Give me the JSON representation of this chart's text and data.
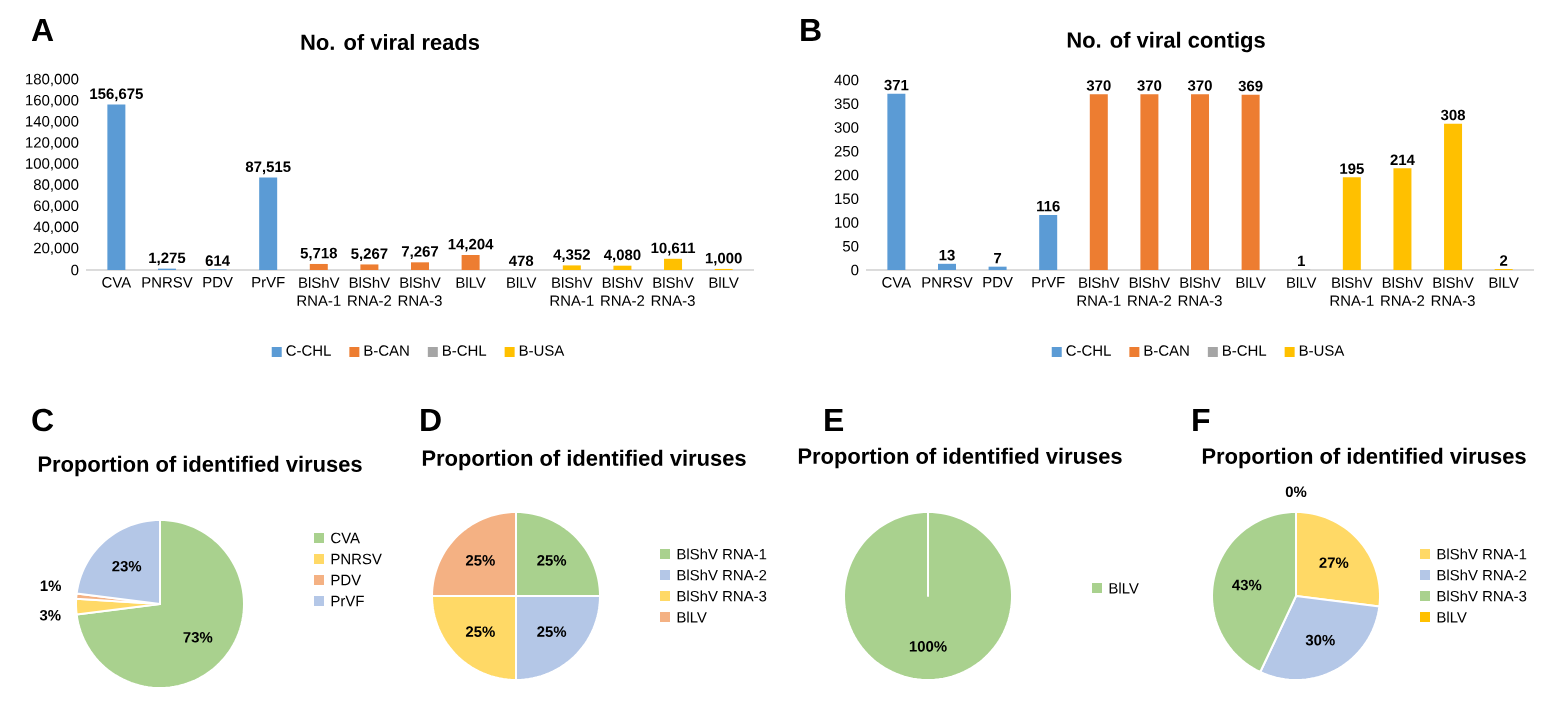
{
  "chart_data": [
    {
      "type": "bar",
      "title": "No. of viral reads",
      "annotations": [
        "A"
      ],
      "legend": "bottom",
      "categories": [
        "CVA",
        "PNRSV",
        "PDV",
        "PrVF",
        "BlShV RNA-1",
        "BlShV RNA-2",
        "BlShV RNA-3",
        "BlLV",
        "BlLV",
        "BlShV RNA-1",
        "BlShV RNA-2",
        "BlShV RNA-3",
        "BlLV"
      ],
      "ylim": [
        0,
        180000
      ],
      "yticks": [
        0,
        {
          "value": 20000,
          "label": "20,000"
        },
        {
          "value": 40000,
          "label": "40,000"
        },
        {
          "value": 60000,
          "label": "60,000"
        },
        {
          "value": 80000,
          "label": "80,000"
        },
        {
          "value": 100000,
          "label": "100,000"
        },
        {
          "value": 120000,
          "label": "120,000"
        },
        {
          "value": 140000,
          "label": "140,000"
        },
        {
          "value": 160000,
          "label": "160,000"
        },
        {
          "value": 180000,
          "label": "180,000"
        }
      ],
      "series": [
        {
          "name": "C-CHL",
          "color": "#5b9bd5",
          "values": [
            156675,
            1275,
            614,
            87515,
            null,
            null,
            null,
            null,
            null,
            null,
            null,
            null,
            null
          ],
          "value_labels": [
            "156,675",
            "1,275",
            "614",
            "87,515",
            null,
            null,
            null,
            null,
            null,
            null,
            null,
            null,
            null
          ]
        },
        {
          "name": "B-CAN",
          "color": "#ed7d31",
          "values": [
            null,
            null,
            null,
            null,
            5718,
            5267,
            7267,
            14204,
            null,
            null,
            null,
            null,
            null
          ],
          "value_labels": [
            null,
            null,
            null,
            null,
            "5,718",
            "5,267",
            "7,267",
            "14,204",
            null,
            null,
            null,
            null,
            null
          ]
        },
        {
          "name": "B-CHL",
          "color": "#a5a5a5",
          "values": [
            null,
            null,
            null,
            null,
            null,
            null,
            null,
            null,
            478,
            null,
            null,
            null,
            null
          ],
          "value_labels": [
            null,
            null,
            null,
            null,
            null,
            null,
            null,
            null,
            "478",
            null,
            null,
            null,
            null
          ]
        },
        {
          "name": "B-USA",
          "color": "#ffc000",
          "values": [
            null,
            null,
            null,
            null,
            null,
            null,
            null,
            null,
            null,
            4352,
            4080,
            10611,
            1000
          ],
          "value_labels": [
            null,
            null,
            null,
            null,
            null,
            null,
            null,
            null,
            null,
            "4,352",
            "4,080",
            "10,611",
            "1,000"
          ]
        }
      ]
    },
    {
      "type": "bar",
      "title": "No. of viral contigs",
      "annotations": [
        "B"
      ],
      "legend": "bottom",
      "categories": [
        "CVA",
        "PNRSV",
        "PDV",
        "PrVF",
        "BlShV RNA-1",
        "BlShV RNA-2",
        "BlShV RNA-3",
        "BlLV",
        "BlLV",
        "BlShV RNA-1",
        "BlShV RNA-2",
        "BlShV RNA-3",
        "BlLV"
      ],
      "ylim": [
        0,
        400
      ],
      "yticks": [
        0,
        50,
        100,
        150,
        200,
        250,
        300,
        350,
        400
      ],
      "series": [
        {
          "name": "C-CHL",
          "color": "#5b9bd5",
          "values": [
            371,
            13,
            7,
            116,
            null,
            null,
            null,
            null,
            null,
            null,
            null,
            null,
            null
          ],
          "value_labels": [
            "371",
            "13",
            "7",
            "116",
            null,
            null,
            null,
            null,
            null,
            null,
            null,
            null,
            null
          ]
        },
        {
          "name": "B-CAN",
          "color": "#ed7d31",
          "values": [
            null,
            null,
            null,
            null,
            370,
            370,
            370,
            369,
            null,
            null,
            null,
            null,
            null
          ],
          "value_labels": [
            null,
            null,
            null,
            null,
            "370",
            "370",
            "370",
            "369",
            null,
            null,
            null,
            null,
            null
          ]
        },
        {
          "name": "B-CHL",
          "color": "#a5a5a5",
          "values": [
            null,
            null,
            null,
            null,
            null,
            null,
            null,
            null,
            1,
            null,
            null,
            null,
            null
          ],
          "value_labels": [
            null,
            null,
            null,
            null,
            null,
            null,
            null,
            null,
            "1",
            null,
            null,
            null,
            null
          ]
        },
        {
          "name": "B-USA",
          "color": "#ffc000",
          "values": [
            null,
            null,
            null,
            null,
            null,
            null,
            null,
            null,
            null,
            195,
            214,
            308,
            2
          ],
          "value_labels": [
            null,
            null,
            null,
            null,
            null,
            null,
            null,
            null,
            null,
            "195",
            "214",
            "308",
            "2"
          ]
        }
      ]
    },
    {
      "type": "pie",
      "title": "Proportion of identified viruses",
      "annotations": [
        "C"
      ],
      "legend": "right",
      "categories": [
        "CVA",
        "PNRSV",
        "PDV",
        "PrVF"
      ],
      "values": [
        73,
        3,
        1,
        23
      ],
      "colors": [
        "#a9d18e",
        "#ffd966",
        "#f4b183",
        "#b4c7e7"
      ],
      "value_labels": [
        "73%",
        "3%",
        "1%",
        "23%"
      ]
    },
    {
      "type": "pie",
      "title": "Proportion of identified viruses",
      "annotations": [
        "D"
      ],
      "legend": "right",
      "categories": [
        "BlShV RNA-1",
        "BlShV RNA-2",
        "BlShV RNA-3",
        "BlLV"
      ],
      "values": [
        25,
        25,
        25,
        25
      ],
      "colors": [
        "#a9d18e",
        "#b4c7e7",
        "#ffd966",
        "#f4b183"
      ],
      "value_labels": [
        "25%",
        "25%",
        "25%",
        "25%"
      ]
    },
    {
      "type": "pie",
      "title": "Proportion of identified viruses",
      "annotations": [
        "E"
      ],
      "legend": "right",
      "categories": [
        "BlLV"
      ],
      "values": [
        100
      ],
      "colors": [
        "#a9d18e"
      ],
      "value_labels": [
        "100%"
      ]
    },
    {
      "type": "pie",
      "title": "Proportion of identified viruses",
      "annotations": [
        "F"
      ],
      "legend": "right",
      "categories": [
        "BlShV RNA-1",
        "BlShV RNA-2",
        "BlShV RNA-3",
        "BlLV"
      ],
      "values": [
        27,
        30,
        43,
        0
      ],
      "colors": [
        "#ffd966",
        "#b4c7e7",
        "#a9d18e",
        "#ffc000"
      ],
      "value_labels": [
        "27%",
        "30%",
        "43%",
        "0%"
      ]
    }
  ]
}
